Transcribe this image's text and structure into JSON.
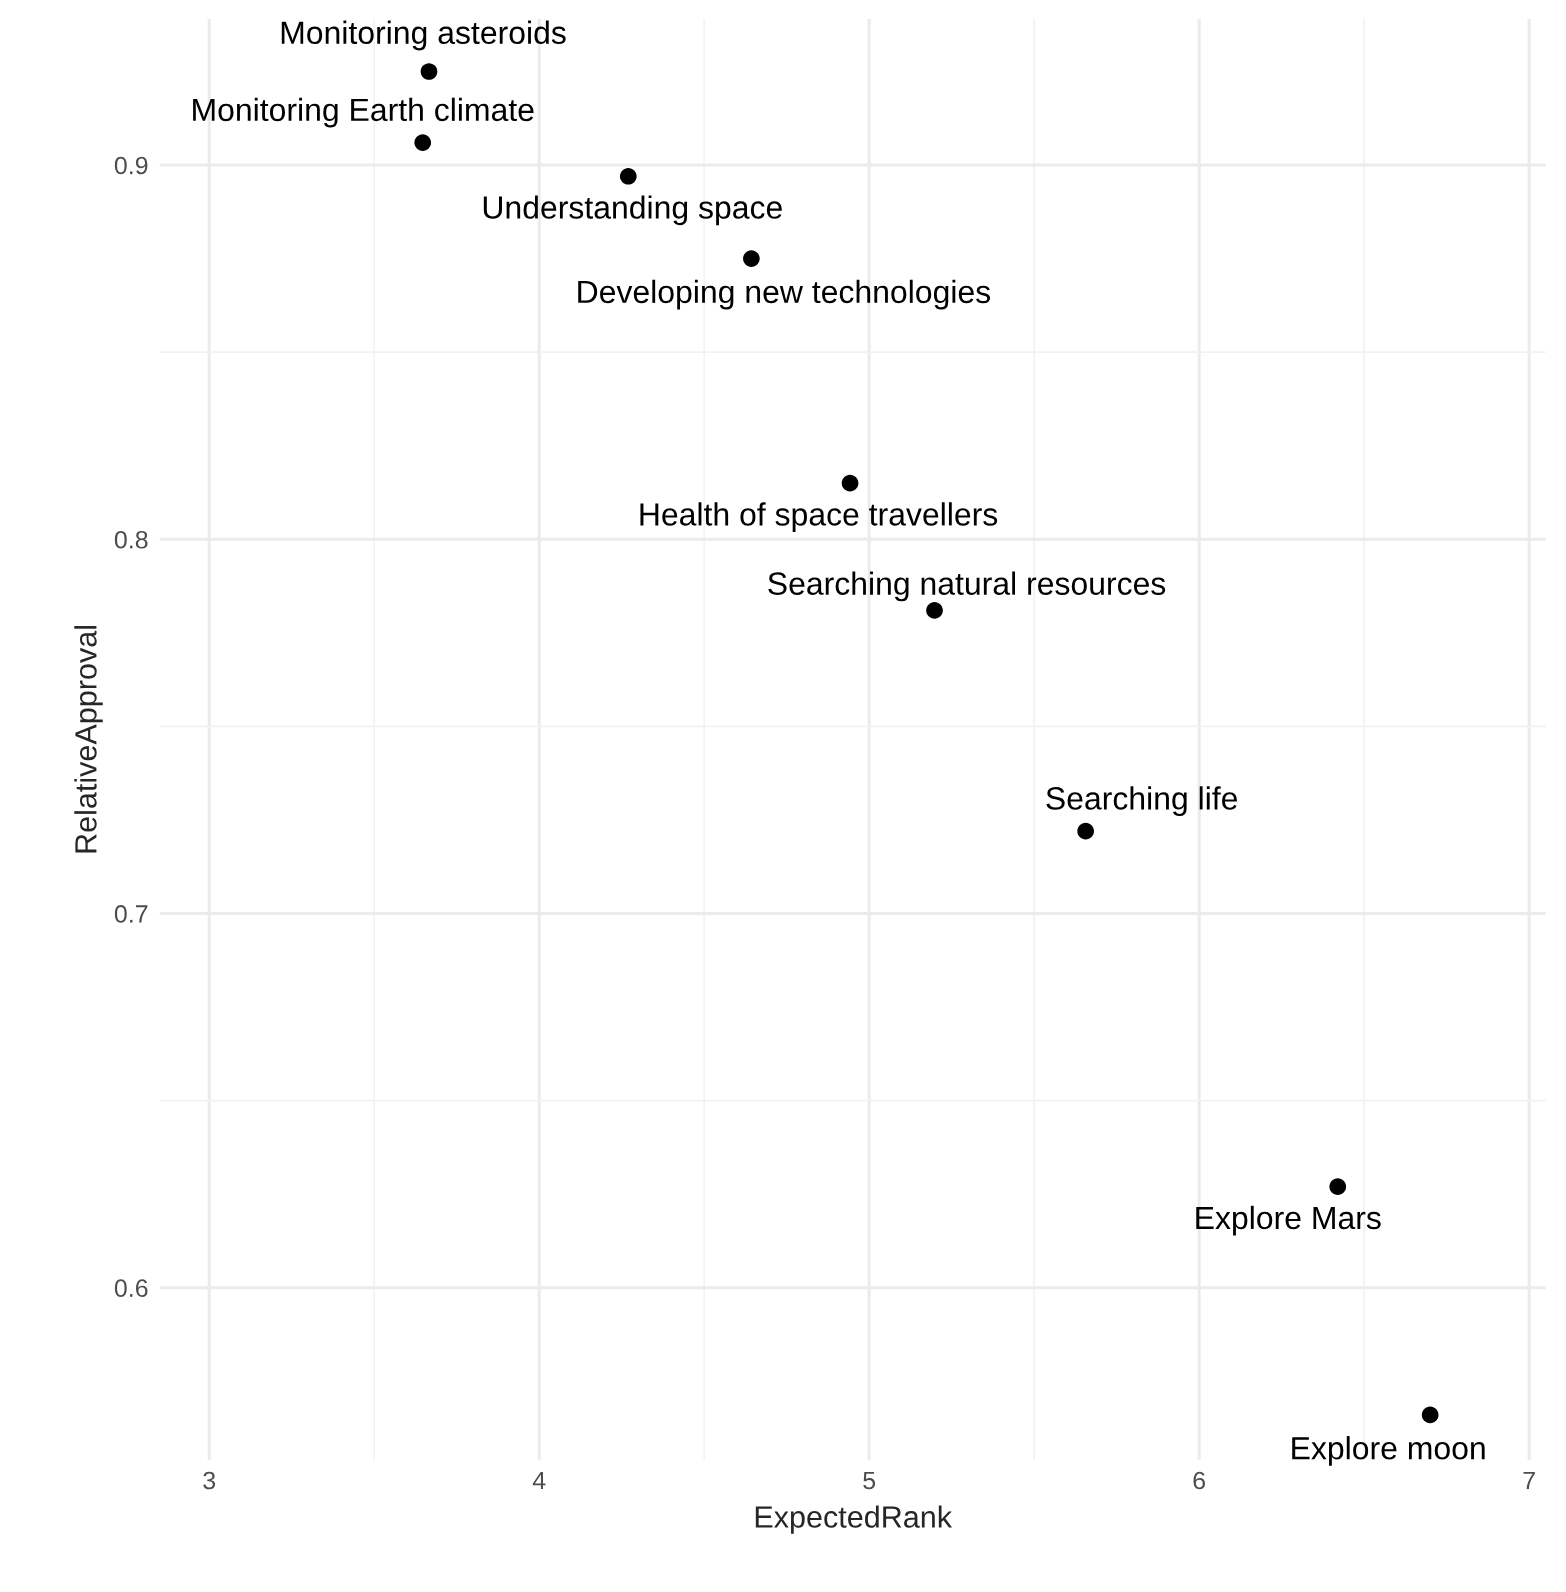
{
  "chart_data": {
    "type": "scatter",
    "xlabel": "ExpectedRank",
    "ylabel": "RelativeApproval",
    "x": [
      3.666,
      3.647,
      4.27,
      4.643,
      4.942,
      5.198,
      5.656,
      6.42,
      6.7
    ],
    "series": [
      {
        "color": "#000000",
        "values": [
          0.925,
          0.906,
          0.897,
          0.875,
          0.815,
          0.781,
          0.722,
          0.627,
          0.566
        ]
      }
    ],
    "annotations": [
      {
        "text": "Monitoring asteroids",
        "x": 3.666,
        "y": 0.925
      },
      {
        "text": "Monitoring Earth climate",
        "x": 3.647,
        "y": 0.906
      },
      {
        "text": "Understanding space",
        "x": 4.27,
        "y": 0.897
      },
      {
        "text": "Developing new technologies",
        "x": 4.643,
        "y": 0.875
      },
      {
        "text": "Health of space travellers",
        "x": 4.942,
        "y": 0.815
      },
      {
        "text": "Searching natural resources",
        "x": 5.198,
        "y": 0.781
      },
      {
        "text": "Searching life",
        "x": 5.656,
        "y": 0.722
      },
      {
        "text": "Explore Mars",
        "x": 6.42,
        "y": 0.627
      },
      {
        "text": "Explore moon",
        "x": 6.7,
        "y": 0.566
      }
    ],
    "xlim": [
      2.85,
      7.05
    ],
    "ylim": [
      0.554,
      0.939
    ],
    "xticks": [
      3,
      4,
      5,
      6,
      7
    ],
    "yticks": [
      0.6,
      0.7,
      0.8,
      0.9
    ],
    "grid": true,
    "marker": "circle"
  }
}
